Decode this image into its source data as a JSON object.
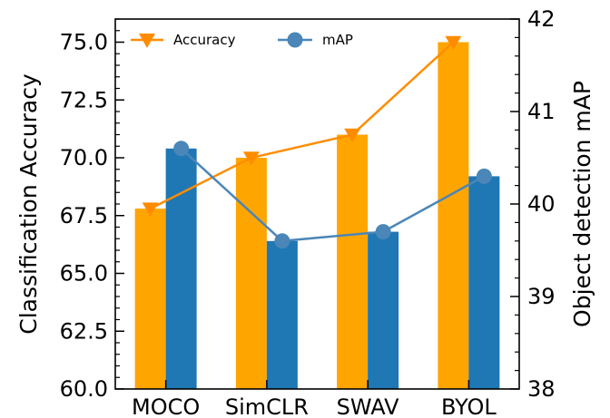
{
  "chart_data": {
    "type": "bar",
    "categories": [
      "MOCO",
      "SimCLR",
      "SWAV",
      "BYOL"
    ],
    "series": [
      {
        "name": "Accuracy",
        "axis": "left",
        "bar_values": [
          67.8,
          70.0,
          71.0,
          75.0
        ],
        "line_values": [
          67.8,
          70.0,
          71.0,
          75.0
        ],
        "color": "#FFA500",
        "line_color": "#FF8C00",
        "marker": "triangle-down"
      },
      {
        "name": "mAP",
        "axis": "right",
        "bar_values": [
          40.6,
          39.6,
          39.7,
          40.3
        ],
        "line_values": [
          40.6,
          39.6,
          39.7,
          40.3
        ],
        "color": "#1F77B4",
        "line_color": "#4A86B8",
        "marker": "circle"
      }
    ],
    "ylabel": "Classification Accuracy",
    "y2label": "Object detection mAP",
    "ylim": [
      60.0,
      76.0
    ],
    "y2lim": [
      38,
      42
    ],
    "yticks": [
      "60.0",
      "62.5",
      "65.0",
      "67.5",
      "70.0",
      "72.5",
      "75.0"
    ],
    "y2ticks": [
      "38",
      "39",
      "40",
      "41",
      "42"
    ],
    "grid": false,
    "legend": "top",
    "combo": "bars with overlaid line and markers"
  }
}
